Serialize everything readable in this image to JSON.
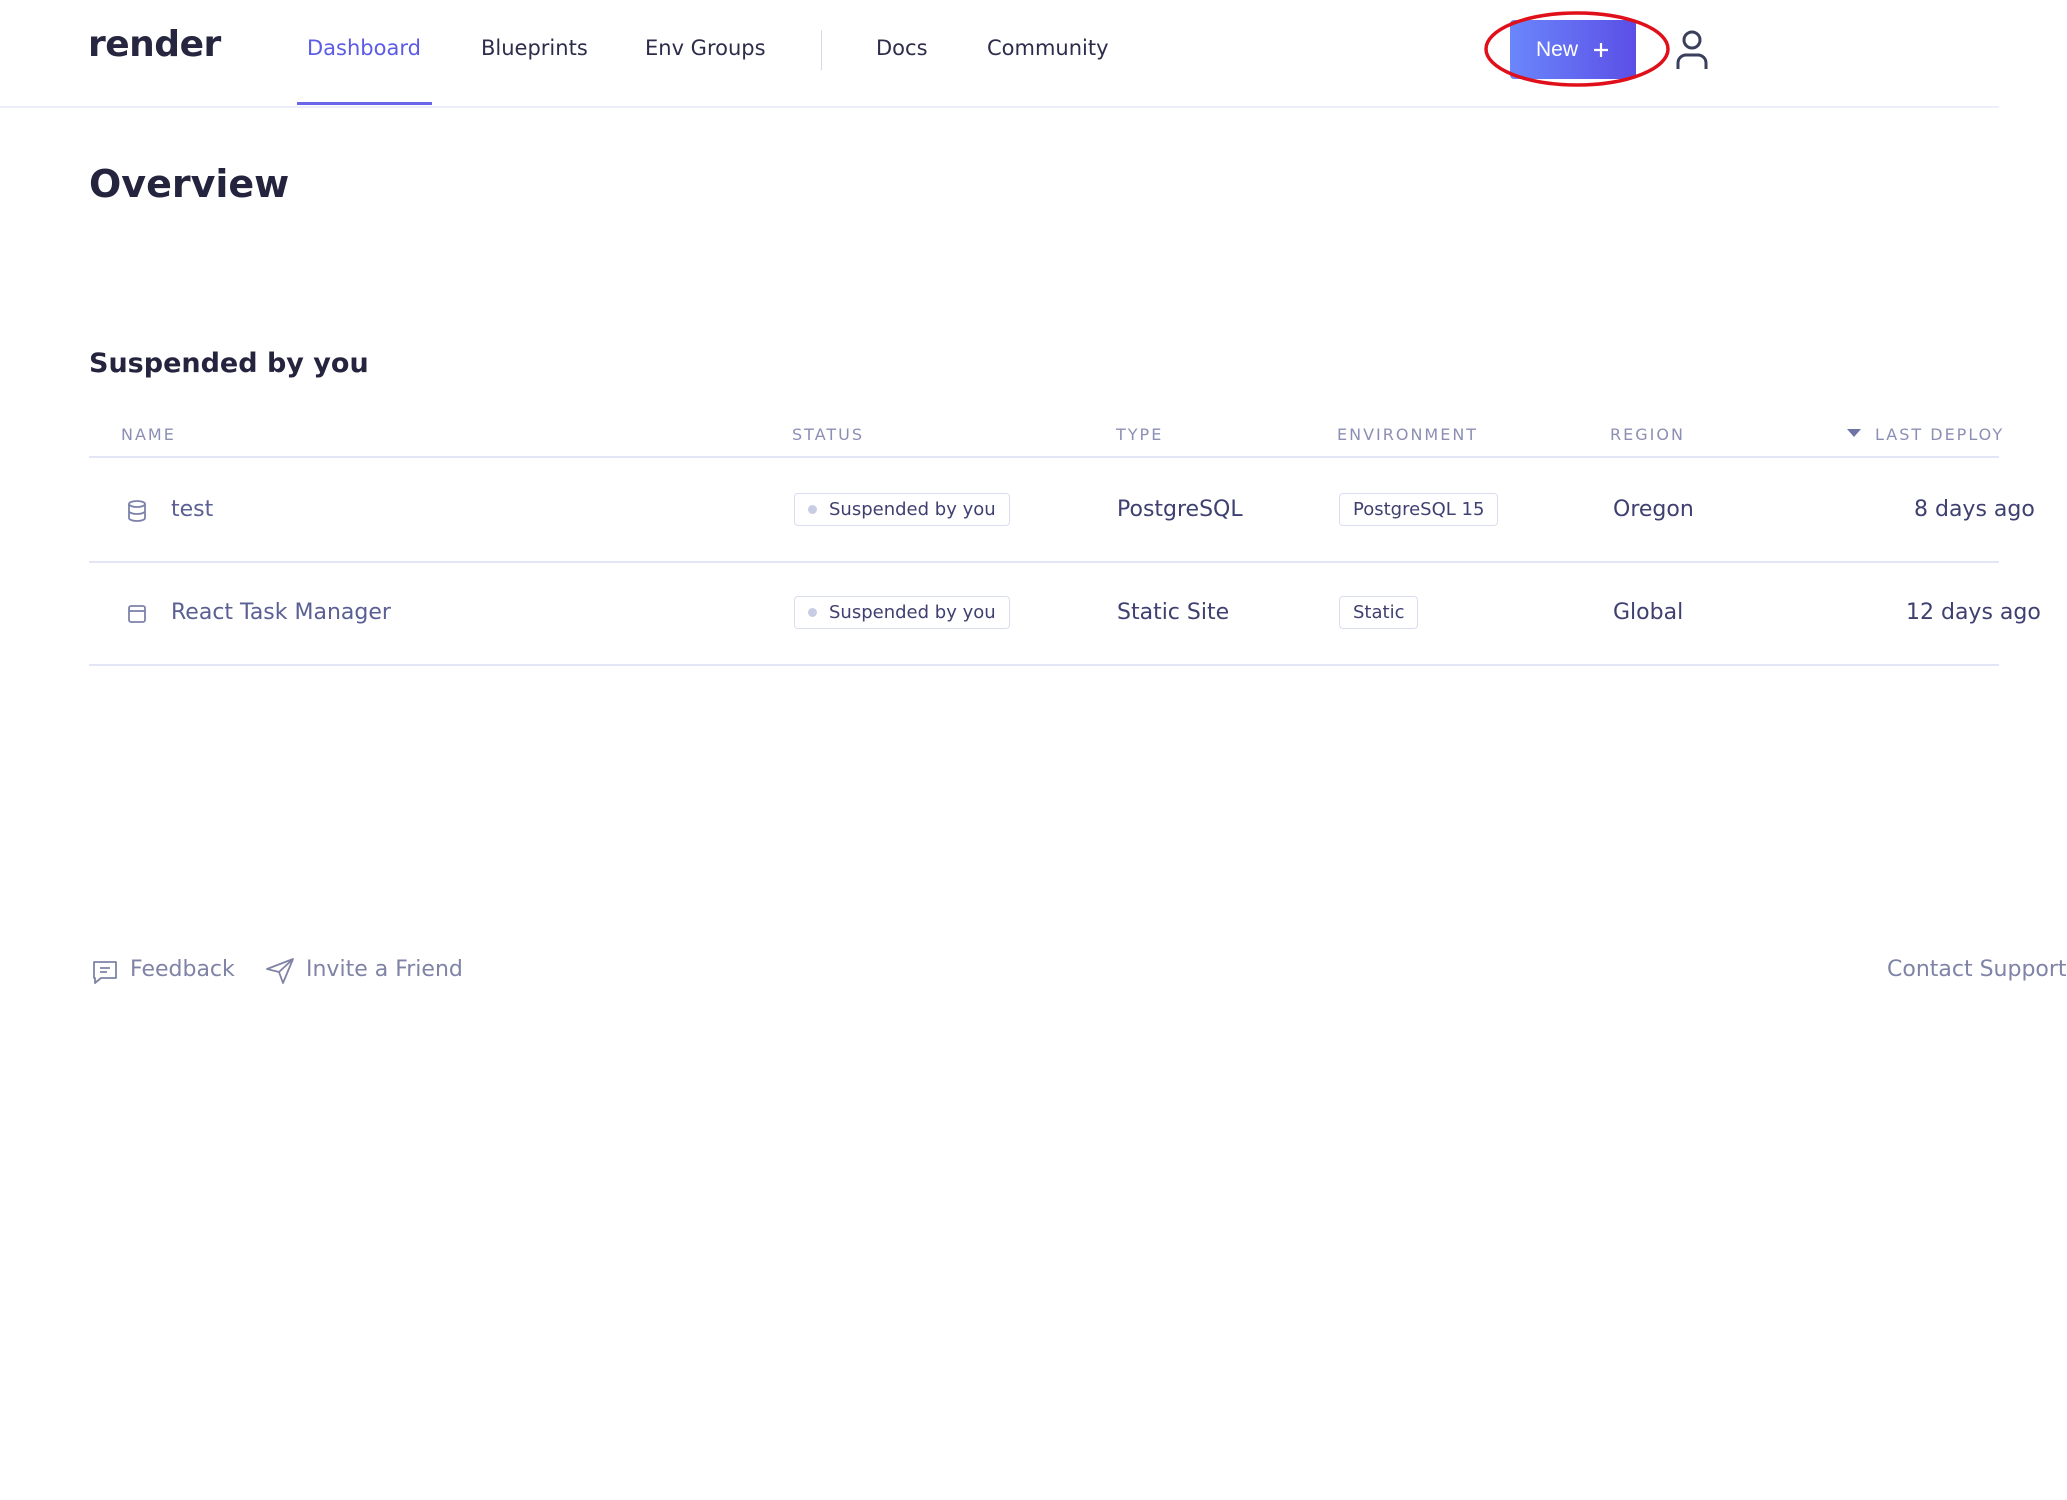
{
  "nav": {
    "logo": "render",
    "links": [
      {
        "label": "Dashboard",
        "active": true
      },
      {
        "label": "Blueprints"
      },
      {
        "label": "Env Groups"
      },
      {
        "label": "Docs"
      },
      {
        "label": "Community"
      }
    ],
    "new_button": "New",
    "new_icon": "plus-icon",
    "user_icon": "user-icon",
    "accent": "#5b5be6",
    "annotation_color": "#e0101a"
  },
  "page": {
    "title": "Overview",
    "section_title": "Suspended by you"
  },
  "table": {
    "headers": [
      "NAME",
      "STATUS",
      "TYPE",
      "ENVIRONMENT",
      "REGION",
      "LAST DEPLOY"
    ],
    "rows": [
      {
        "icon": "database-icon",
        "name": "test",
        "status": "Suspended by you",
        "type": "PostgreSQL",
        "environment": "PostgreSQL 15",
        "region": "Oregon",
        "last_deploy": "8 days ago"
      },
      {
        "icon": "static-site-icon",
        "name": "React Task Manager",
        "status": "Suspended by you",
        "type": "Static Site",
        "environment": "Static",
        "region": "Global",
        "last_deploy": "12 days ago"
      }
    ]
  },
  "footer": {
    "feedback": "Feedback",
    "invite": "Invite a Friend",
    "contact": "Contact Support"
  }
}
